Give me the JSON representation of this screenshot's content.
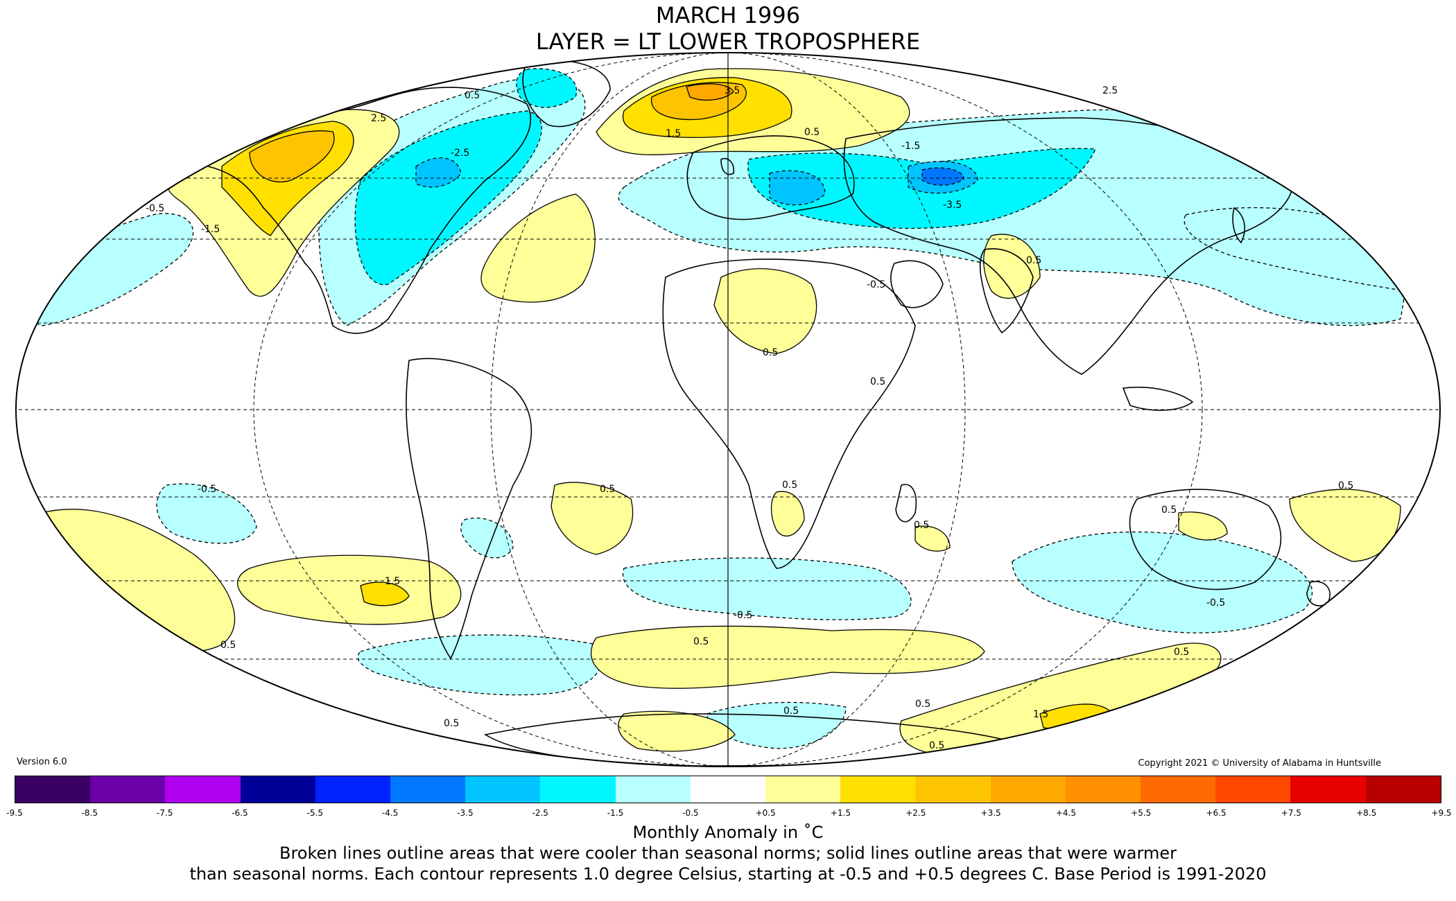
{
  "title": {
    "line1": "MARCH 1996",
    "line2": "LAYER = LT LOWER TROPOSPHERE"
  },
  "version": "Version 6.0",
  "copyright": "Copyright 2021 © University of Alabama in Huntsville",
  "legend": {
    "unit_label": "Monthly Anomaly in ˚C",
    "colors": [
      "#3a0063",
      "#6a00a8",
      "#b000f0",
      "#000099",
      "#0022ff",
      "#0077ff",
      "#00c4ff",
      "#00f7ff",
      "#b8ffff",
      "#ffffff",
      "#ffff99",
      "#ffe000",
      "#ffc400",
      "#ffa800",
      "#ff9000",
      "#ff6a00",
      "#ff4800",
      "#e60000",
      "#b80000"
    ],
    "ticks": [
      "-9.5",
      "-8.5",
      "-7.5",
      "-6.5",
      "-5.5",
      "-4.5",
      "-3.5",
      "-2.5",
      "-1.5",
      "-0.5",
      "+0.5",
      "+1.5",
      "+2.5",
      "+3.5",
      "+4.5",
      "+5.5",
      "+6.5",
      "+7.5",
      "+8.5",
      "+9.5"
    ]
  },
  "contour_labels": [
    "0.5",
    "2.5",
    "1.5",
    "3.5",
    "-0.5",
    "-1.5",
    "-2.5",
    "-3.5"
  ],
  "caption": {
    "line1": "Broken lines outline areas that were cooler than seasonal norms; solid lines outline areas that were warmer",
    "line2": "than seasonal norms. Each contour represents 1.0 degree Celsius, starting at -0.5 and +0.5 degrees C. Base Period is 1991-2020"
  }
}
